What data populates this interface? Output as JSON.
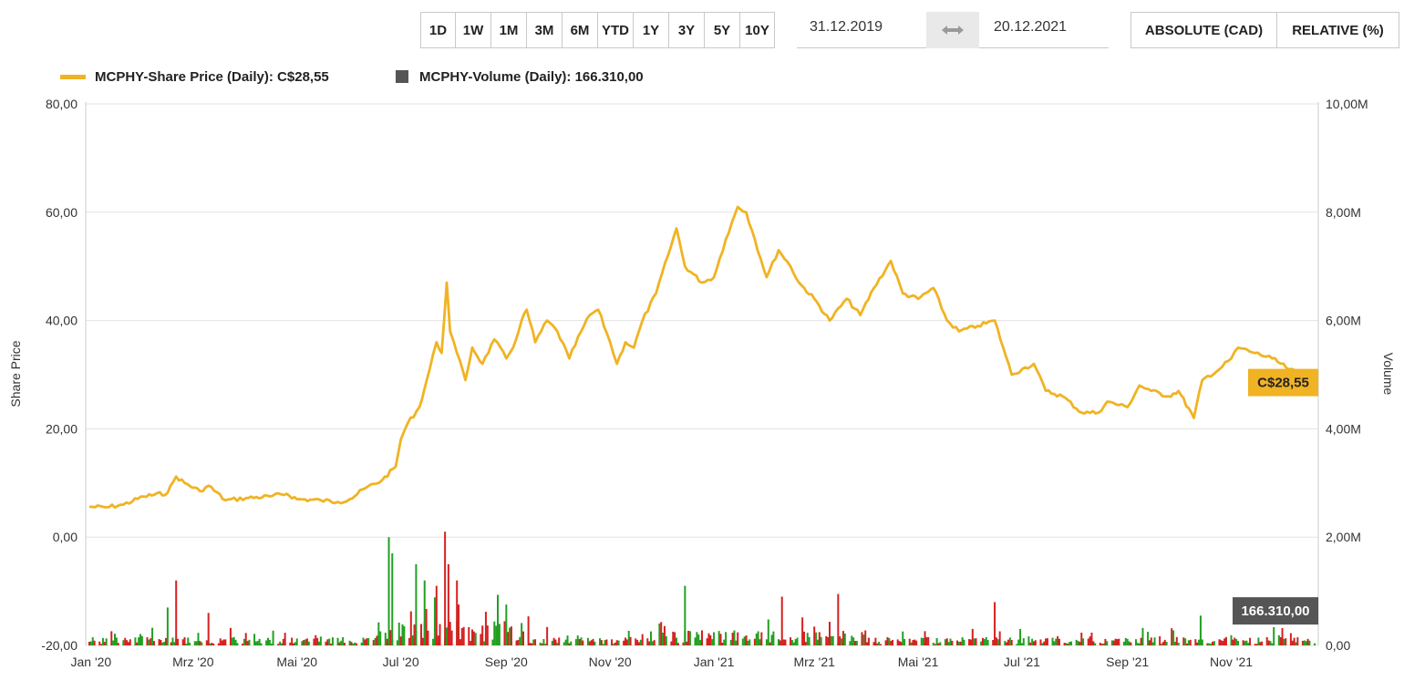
{
  "toolbar": {
    "ranges": [
      "1D",
      "1W",
      "1M",
      "3M",
      "6M",
      "YTD",
      "1Y",
      "3Y",
      "5Y",
      "10Y"
    ],
    "date_from": "31.12.2019",
    "date_to": "20.12.2021",
    "modes": [
      "ABSOLUTE (CAD)",
      "RELATIVE (%)"
    ]
  },
  "legend": {
    "price": "MCPHY-Share Price (Daily): C$28,55",
    "volume": "MCPHY-Volume (Daily): 166.310,00"
  },
  "chart_data": {
    "type": "line",
    "x_tick_labels": [
      "Jan '20",
      "Mrz '20",
      "Mai '20",
      "Jul '20",
      "Sep '20",
      "Nov '20",
      "Jan '21",
      "Mrz '21",
      "Mai '21",
      "Jul '21",
      "Sep '21",
      "Nov '21"
    ],
    "ylabel": "Share Price",
    "ylabel_right": "Volume",
    "y_ticks": [
      "80,00",
      "60,00",
      "40,00",
      "20,00",
      "0,00",
      "-20,00"
    ],
    "y2_ticks": [
      "10,00M",
      "8,00M",
      "6,00M",
      "4,00M",
      "2,00M",
      "0,00"
    ],
    "ylim": [
      -20,
      80
    ],
    "y2lim": [
      0,
      10000000
    ],
    "x_range": [
      "2019-12-31",
      "2021-12-20"
    ],
    "grid": true,
    "series": [
      {
        "name": "MCPHY-Share Price (Daily)",
        "kind": "line",
        "color": "#f0b323",
        "points": [
          [
            "2019-12-31",
            5.6
          ],
          [
            "2020-01-10",
            5.5
          ],
          [
            "2020-01-20",
            6.0
          ],
          [
            "2020-02-01",
            7.5
          ],
          [
            "2020-02-15",
            8.2
          ],
          [
            "2020-02-20",
            11.2
          ],
          [
            "2020-02-25",
            10.0
          ],
          [
            "2020-03-05",
            8.5
          ],
          [
            "2020-03-10",
            9.5
          ],
          [
            "2020-03-20",
            6.8
          ],
          [
            "2020-04-01",
            7.2
          ],
          [
            "2020-04-15",
            7.5
          ],
          [
            "2020-04-25",
            8.0
          ],
          [
            "2020-05-01",
            7.0
          ],
          [
            "2020-05-15",
            6.8
          ],
          [
            "2020-05-25",
            6.5
          ],
          [
            "2020-06-01",
            7.0
          ],
          [
            "2020-06-10",
            9.0
          ],
          [
            "2020-06-20",
            10.5
          ],
          [
            "2020-06-28",
            13.0
          ],
          [
            "2020-07-01",
            18.0
          ],
          [
            "2020-07-05",
            21.0
          ],
          [
            "2020-07-12",
            24.0
          ],
          [
            "2020-07-18",
            31.0
          ],
          [
            "2020-07-22",
            36.0
          ],
          [
            "2020-07-25",
            34.0
          ],
          [
            "2020-07-28",
            47.0
          ],
          [
            "2020-07-30",
            38.0
          ],
          [
            "2020-08-03",
            34.0
          ],
          [
            "2020-08-08",
            29.0
          ],
          [
            "2020-08-12",
            35.0
          ],
          [
            "2020-08-18",
            32.0
          ],
          [
            "2020-08-25",
            36.5
          ],
          [
            "2020-09-01",
            33.0
          ],
          [
            "2020-09-05",
            35.0
          ],
          [
            "2020-09-10",
            40.0
          ],
          [
            "2020-09-13",
            42.0
          ],
          [
            "2020-09-18",
            36.0
          ],
          [
            "2020-09-25",
            40.0
          ],
          [
            "2020-10-01",
            38.0
          ],
          [
            "2020-10-08",
            33.0
          ],
          [
            "2020-10-15",
            38.0
          ],
          [
            "2020-10-20",
            41.0
          ],
          [
            "2020-10-25",
            42.0
          ],
          [
            "2020-11-01",
            36.0
          ],
          [
            "2020-11-05",
            32.0
          ],
          [
            "2020-11-10",
            36.0
          ],
          [
            "2020-11-15",
            35.0
          ],
          [
            "2020-11-20",
            40.0
          ],
          [
            "2020-11-28",
            45.0
          ],
          [
            "2020-12-05",
            52.0
          ],
          [
            "2020-12-10",
            57.0
          ],
          [
            "2020-12-15",
            50.0
          ],
          [
            "2020-12-25",
            47.0
          ],
          [
            "2021-01-01",
            48.0
          ],
          [
            "2021-01-08",
            55.0
          ],
          [
            "2021-01-15",
            61.0
          ],
          [
            "2021-01-20",
            60.0
          ],
          [
            "2021-01-25",
            55.0
          ],
          [
            "2021-02-01",
            48.0
          ],
          [
            "2021-02-08",
            53.0
          ],
          [
            "2021-02-15",
            50.0
          ],
          [
            "2021-02-20",
            47.0
          ],
          [
            "2021-03-01",
            44.0
          ],
          [
            "2021-03-10",
            40.0
          ],
          [
            "2021-03-20",
            44.0
          ],
          [
            "2021-03-28",
            41.0
          ],
          [
            "2021-04-05",
            46.0
          ],
          [
            "2021-04-15",
            51.0
          ],
          [
            "2021-04-22",
            45.0
          ],
          [
            "2021-05-01",
            44.0
          ],
          [
            "2021-05-10",
            46.0
          ],
          [
            "2021-05-18",
            40.0
          ],
          [
            "2021-05-25",
            38.0
          ],
          [
            "2021-06-05",
            39.0
          ],
          [
            "2021-06-15",
            40.0
          ],
          [
            "2021-06-20",
            35.0
          ],
          [
            "2021-06-25",
            30.0
          ],
          [
            "2021-07-01",
            31.0
          ],
          [
            "2021-07-08",
            32.0
          ],
          [
            "2021-07-15",
            27.0
          ],
          [
            "2021-07-25",
            26.0
          ],
          [
            "2021-08-05",
            23.0
          ],
          [
            "2021-08-15",
            23.0
          ],
          [
            "2021-08-20",
            25.0
          ],
          [
            "2021-09-01",
            24.0
          ],
          [
            "2021-09-08",
            28.0
          ],
          [
            "2021-09-15",
            27.0
          ],
          [
            "2021-09-25",
            26.0
          ],
          [
            "2021-10-01",
            27.0
          ],
          [
            "2021-10-10",
            22.0
          ],
          [
            "2021-10-15",
            29.0
          ],
          [
            "2021-10-25",
            31.0
          ],
          [
            "2021-11-01",
            33.0
          ],
          [
            "2021-11-05",
            35.0
          ],
          [
            "2021-11-15",
            34.0
          ],
          [
            "2021-11-25",
            33.0
          ],
          [
            "2021-12-05",
            31.0
          ],
          [
            "2021-12-15",
            29.5
          ],
          [
            "2021-12-20",
            28.55
          ]
        ]
      },
      {
        "name": "MCPHY-Volume (Daily)",
        "kind": "bar",
        "colors": {
          "up": "#22a022",
          "down": "#d62020"
        },
        "spikes": [
          [
            "2020-02-15",
            700000,
            "up"
          ],
          [
            "2020-02-20",
            1200000,
            "down"
          ],
          [
            "2020-03-10",
            600000,
            "down"
          ],
          [
            "2020-06-24",
            2000000,
            "up"
          ],
          [
            "2020-06-26",
            1700000,
            "up"
          ],
          [
            "2020-07-10",
            1500000,
            "up"
          ],
          [
            "2020-07-15",
            1200000,
            "up"
          ],
          [
            "2020-07-22",
            1100000,
            "down"
          ],
          [
            "2020-07-27",
            2100000,
            "down"
          ],
          [
            "2020-07-29",
            1500000,
            "down"
          ],
          [
            "2020-08-03",
            1200000,
            "down"
          ],
          [
            "2020-12-15",
            1100000,
            "up"
          ],
          [
            "2021-02-10",
            900000,
            "down"
          ],
          [
            "2021-03-15",
            950000,
            "down"
          ],
          [
            "2021-06-15",
            800000,
            "down"
          ],
          [
            "2021-10-14",
            550000,
            "up"
          ]
        ]
      }
    ],
    "last_price_label": "C$28,55",
    "last_volume_label": "166.310,00",
    "last_price": 28.55,
    "last_volume": 166310
  }
}
